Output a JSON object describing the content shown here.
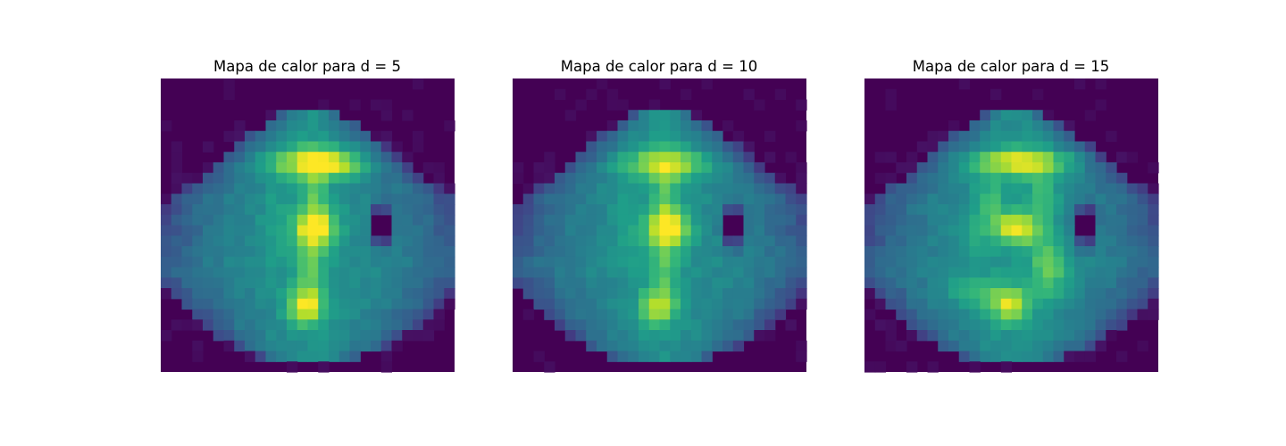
{
  "chart_data": [
    {
      "type": "heatmap",
      "title": "Mapa de calor para d = 5",
      "colormap": "viridis",
      "axes_visible": false,
      "grid_size": [
        28,
        28
      ],
      "value_range": [
        0,
        1
      ],
      "shape": {
        "outline": [
          [
            2,
            -0.05
          ],
          [
            2.5,
            2.4
          ],
          [
            5,
            6.2
          ],
          [
            7.5,
            8.9
          ],
          [
            9.5,
            11.2
          ],
          [
            10.5,
            13.6
          ],
          [
            11.5,
            13.8
          ],
          [
            12.5,
            14.1
          ],
          [
            13.5,
            14.4
          ],
          [
            14.5,
            14.6
          ],
          [
            15.5,
            15.0
          ],
          [
            16.5,
            16.0
          ],
          [
            17.5,
            16.6
          ],
          [
            18.5,
            15.2
          ],
          [
            19.5,
            13.7
          ],
          [
            21,
            12.6
          ],
          [
            22,
            11.3
          ],
          [
            23.5,
            9.8
          ],
          [
            25.5,
            6.7
          ],
          [
            26.2,
            4.6
          ],
          [
            27,
            -0.05
          ]
        ],
        "features": [
          {
            "r": 7.5,
            "c": 13.5,
            "sr": 1.0,
            "sc": 3.0,
            "a": 0.42
          },
          {
            "r": 7.8,
            "c": 16.5,
            "sr": 0.9,
            "sc": 1.8,
            "a": 0.25
          },
          {
            "r": 13.8,
            "c": 14.3,
            "sr": 1.2,
            "sc": 1.4,
            "a": 0.5
          },
          {
            "r": 21.3,
            "c": 13.3,
            "sr": 1.2,
            "sc": 1.2,
            "a": 0.45
          },
          {
            "r": 10.5,
            "c": 14.0,
            "sr": 2.5,
            "sc": 0.9,
            "a": 0.22
          },
          {
            "r": 17.5,
            "c": 13.8,
            "sr": 2.5,
            "sc": 1.0,
            "a": 0.25
          },
          {
            "r": 13.5,
            "c": 20.5,
            "sr": 1.2,
            "sc": 0.6,
            "a": -0.72
          },
          {
            "r": 13.5,
            "c": 10.5,
            "sr": 3.0,
            "sc": 1.0,
            "a": 0.08
          }
        ]
      }
    },
    {
      "type": "heatmap",
      "title": "Mapa de calor para d = 10",
      "colormap": "viridis",
      "axes_visible": false,
      "grid_size": [
        28,
        28
      ],
      "value_range": [
        0,
        1
      ],
      "shape": {
        "outline": [
          [
            2,
            -0.05
          ],
          [
            2.5,
            2.4
          ],
          [
            5,
            6.2
          ],
          [
            7.5,
            8.9
          ],
          [
            9.5,
            11.2
          ],
          [
            10.5,
            13.6
          ],
          [
            11.5,
            13.8
          ],
          [
            12.5,
            14.1
          ],
          [
            13.5,
            14.4
          ],
          [
            14.5,
            14.6
          ],
          [
            15.5,
            15.0
          ],
          [
            16.5,
            16.0
          ],
          [
            17.5,
            16.6
          ],
          [
            18.5,
            15.2
          ],
          [
            19.5,
            13.7
          ],
          [
            21,
            12.6
          ],
          [
            22,
            11.3
          ],
          [
            23.5,
            9.8
          ],
          [
            25.5,
            6.7
          ],
          [
            26.2,
            4.6
          ],
          [
            27,
            -0.05
          ]
        ],
        "features": [
          {
            "r": 7.7,
            "c": 14.0,
            "sr": 1.0,
            "sc": 3.0,
            "a": 0.4
          },
          {
            "r": 13.8,
            "c": 14.3,
            "sr": 1.2,
            "sc": 1.4,
            "a": 0.5
          },
          {
            "r": 21.3,
            "c": 13.3,
            "sr": 1.2,
            "sc": 1.2,
            "a": 0.38
          },
          {
            "r": 10.5,
            "c": 14.0,
            "sr": 2.5,
            "sc": 0.9,
            "a": 0.22
          },
          {
            "r": 17.5,
            "c": 14.0,
            "sr": 2.5,
            "sc": 1.0,
            "a": 0.22
          },
          {
            "r": 13.5,
            "c": 20.5,
            "sr": 1.2,
            "sc": 0.6,
            "a": -0.72
          },
          {
            "r": 13.5,
            "c": 10.5,
            "sr": 3.0,
            "sc": 1.0,
            "a": 0.08
          }
        ]
      }
    },
    {
      "type": "heatmap",
      "title": "Mapa de calor para d = 15",
      "colormap": "viridis",
      "axes_visible": false,
      "grid_size": [
        28,
        28
      ],
      "value_range": [
        0,
        1
      ],
      "shape": {
        "outline": [
          [
            2,
            -0.05
          ],
          [
            2.5,
            2.4
          ],
          [
            5,
            6.2
          ],
          [
            7.5,
            8.9
          ],
          [
            9.5,
            11.2
          ],
          [
            10.5,
            13.6
          ],
          [
            11.5,
            13.8
          ],
          [
            12.5,
            14.1
          ],
          [
            13.5,
            14.4
          ],
          [
            14.5,
            14.6
          ],
          [
            15.5,
            15.0
          ],
          [
            16.5,
            16.0
          ],
          [
            17.5,
            16.6
          ],
          [
            18.5,
            15.2
          ],
          [
            19.5,
            13.7
          ],
          [
            21,
            12.6
          ],
          [
            22,
            11.3
          ],
          [
            23.5,
            9.8
          ],
          [
            25.5,
            6.7
          ],
          [
            26.2,
            4.6
          ],
          [
            27,
            -0.05
          ]
        ],
        "features": [
          {
            "r": 7.5,
            "c": 14.5,
            "sr": 0.9,
            "sc": 3.2,
            "a": 0.5
          },
          {
            "r": 13.8,
            "c": 14.0,
            "sr": 1.1,
            "sc": 1.6,
            "a": 0.5
          },
          {
            "r": 21.3,
            "c": 13.3,
            "sr": 1.1,
            "sc": 1.3,
            "a": 0.42
          },
          {
            "r": 10.5,
            "c": 16.5,
            "sr": 1.5,
            "sc": 1.0,
            "a": 0.22
          },
          {
            "r": 11.0,
            "c": 11.5,
            "sr": 1.5,
            "sc": 1.0,
            "a": 0.18
          },
          {
            "r": 17.5,
            "c": 17.0,
            "sr": 2.0,
            "sc": 1.2,
            "a": 0.3
          },
          {
            "r": 19.8,
            "c": 10.8,
            "sr": 1.0,
            "sc": 2.5,
            "a": 0.2
          },
          {
            "r": 13.5,
            "c": 20.5,
            "sr": 1.2,
            "sc": 0.6,
            "a": -0.72
          },
          {
            "r": 14.5,
            "c": 10.0,
            "sr": 2.0,
            "sc": 1.2,
            "a": 0.08
          }
        ]
      }
    }
  ]
}
